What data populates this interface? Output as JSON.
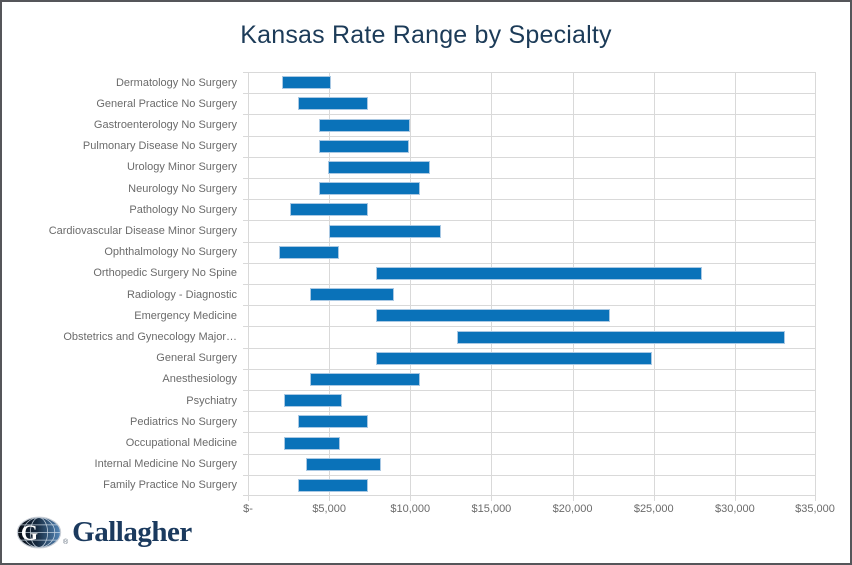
{
  "title": "Kansas Rate Range by Specialty",
  "logo": {
    "brand": "Gallagher",
    "monogram": "G",
    "registered": "®"
  },
  "colors": {
    "bar_fill": "#0a72b9",
    "bar_border": "#a9c8e3",
    "gridline": "#d9d9d9",
    "title_text": "#1c3b58",
    "axis_text": "#6b6b6b",
    "logo_navy": "#1b3a5e",
    "frame_border": "#55565a"
  },
  "chart_data": {
    "type": "bar",
    "orientation": "horizontal-range",
    "title": "Kansas Rate Range by Specialty",
    "xlabel": "",
    "ylabel": "",
    "xlim": [
      0,
      35000
    ],
    "grid": true,
    "legend": false,
    "x_ticks": [
      {
        "label": "$-",
        "value": 0
      },
      {
        "label": "$5,000",
        "value": 5000
      },
      {
        "label": "$10,000",
        "value": 10000
      },
      {
        "label": "$15,000",
        "value": 15000
      },
      {
        "label": "$20,000",
        "value": 20000
      },
      {
        "label": "$25,000",
        "value": 25000
      },
      {
        "label": "$30,000",
        "value": 30000
      },
      {
        "label": "$35,000",
        "value": 35000
      }
    ],
    "categories": [
      "Dermatology No Surgery",
      "General Practice No Surgery",
      "Gastroenterology No Surgery",
      "Pulmonary Disease No Surgery",
      "Urology Minor Surgery",
      "Neurology No Surgery",
      "Pathology No Surgery",
      "Cardiovascular Disease Minor Surgery",
      "Ophthalmology No Surgery",
      "Orthopedic Surgery No Spine",
      "Radiology - Diagnostic",
      "Emergency Medicine",
      "Obstetrics and Gynecology Major…",
      "General Surgery",
      "Anesthesiology",
      "Psychiatry",
      "Pediatrics No Surgery",
      "Occupational Medicine",
      "Internal Medicine No Surgery",
      "Family Practice No Surgery"
    ],
    "ranges": [
      [
        2100,
        5100
      ],
      [
        3100,
        7400
      ],
      [
        4400,
        10000
      ],
      [
        4400,
        9900
      ],
      [
        4900,
        11200
      ],
      [
        4400,
        10600
      ],
      [
        2600,
        7400
      ],
      [
        5000,
        11900
      ],
      [
        1900,
        5600
      ],
      [
        7900,
        28000
      ],
      [
        3800,
        9000
      ],
      [
        7900,
        22300
      ],
      [
        12900,
        33100
      ],
      [
        7900,
        24900
      ],
      [
        3800,
        10600
      ],
      [
        2200,
        5800
      ],
      [
        3100,
        7400
      ],
      [
        2200,
        5700
      ],
      [
        3600,
        8200
      ],
      [
        3100,
        7400
      ]
    ]
  }
}
